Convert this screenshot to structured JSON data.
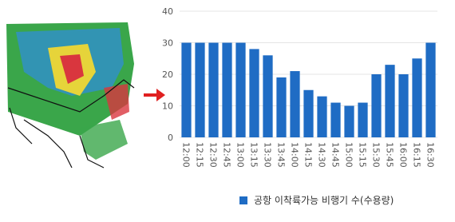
{
  "chart_data": {
    "type": "bar",
    "categories": [
      "12:00",
      "12:15",
      "12:30",
      "12:45",
      "13:00",
      "13:15",
      "13:30",
      "13:45",
      "14:00",
      "14:15",
      "14:30",
      "14:45",
      "15:00",
      "15:15",
      "15:30",
      "15:45",
      "16:00",
      "16:15",
      "16:30"
    ],
    "series": [
      {
        "name": "공항 이착륙가능 비행기 수(수용량)",
        "color": "#1f6cc4",
        "values": [
          30,
          30,
          30,
          30,
          30,
          28,
          26,
          19,
          21,
          15,
          13,
          11,
          10,
          11,
          20,
          23,
          20,
          25,
          30
        ]
      }
    ],
    "ylim": [
      0,
      40
    ],
    "yticks": [
      0,
      10,
      20,
      30,
      40
    ],
    "grid": true
  }
}
